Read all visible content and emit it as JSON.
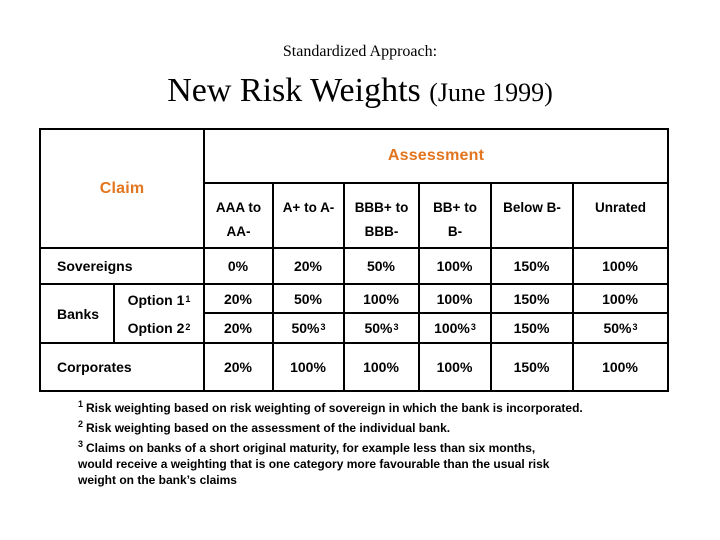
{
  "title": {
    "line1": "Standardized Approach:",
    "line2_main": "New Risk Weights ",
    "line2_paren": "(June 1999)"
  },
  "colors": {
    "accent_orange": "#E2751D",
    "border": "#000000",
    "background": "#FFFFFF"
  },
  "table": {
    "claim_header": "Claim",
    "assessment_header": "Assessment",
    "rating_columns": [
      {
        "line1": "AAA to",
        "line2": "AA-"
      },
      {
        "line1": "A+ to A-",
        "line2": ""
      },
      {
        "line1": "BBB+ to",
        "line2": "BBB-"
      },
      {
        "line1": "BB+ to",
        "line2": "B-"
      },
      {
        "line1": "Below B-",
        "line2": ""
      },
      {
        "line1": "Unrated",
        "line2": ""
      }
    ],
    "rows": {
      "sovereigns": {
        "label": "Sovereigns",
        "cells": [
          {
            "v": "0%",
            "s": ""
          },
          {
            "v": "20%",
            "s": ""
          },
          {
            "v": "50%",
            "s": ""
          },
          {
            "v": "100%",
            "s": ""
          },
          {
            "v": "150%",
            "s": ""
          },
          {
            "v": "100%",
            "s": ""
          }
        ]
      },
      "banks": {
        "label": "Banks",
        "option1": {
          "label": "Option 1",
          "sup": "1",
          "cells": [
            {
              "v": "20%",
              "s": ""
            },
            {
              "v": "50%",
              "s": ""
            },
            {
              "v": "100%",
              "s": ""
            },
            {
              "v": "100%",
              "s": ""
            },
            {
              "v": "150%",
              "s": ""
            },
            {
              "v": "100%",
              "s": ""
            }
          ]
        },
        "option2": {
          "label": "Option 2",
          "sup": "2",
          "cells": [
            {
              "v": "20%",
              "s": ""
            },
            {
              "v": "50%",
              "s": "3"
            },
            {
              "v": "50%",
              "s": "3"
            },
            {
              "v": "100%",
              "s": "3"
            },
            {
              "v": "150%",
              "s": ""
            },
            {
              "v": "50%",
              "s": "3"
            }
          ]
        }
      },
      "corporates": {
        "label": "Corporates",
        "cells": [
          {
            "v": "20%",
            "s": ""
          },
          {
            "v": "100%",
            "s": ""
          },
          {
            "v": "100%",
            "s": ""
          },
          {
            "v": "100%",
            "s": ""
          },
          {
            "v": "150%",
            "s": ""
          },
          {
            "v": "100%",
            "s": ""
          }
        ]
      }
    }
  },
  "footnotes": [
    {
      "sup": "1",
      "lines": [
        "Risk weighting based on risk weighting of sovereign in which the bank is incorporated."
      ]
    },
    {
      "sup": "2",
      "lines": [
        "Risk weighting based on the assessment of the individual bank."
      ]
    },
    {
      "sup": "3",
      "lines": [
        "Claims on banks of a short original maturity, for example less than six months,",
        "would receive a weighting that is one category more favourable than the usual risk",
        "weight on the bank’s claims"
      ]
    }
  ]
}
